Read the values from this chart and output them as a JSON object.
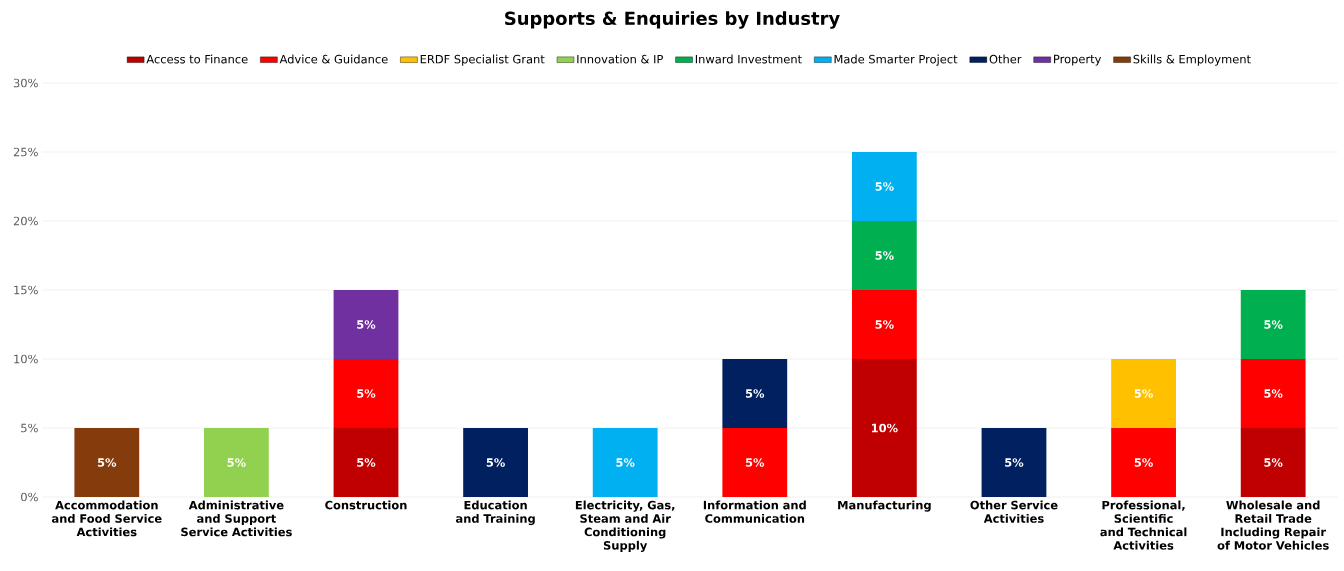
{
  "chart_data": {
    "type": "bar",
    "stacked": true,
    "title": "Supports & Enquiries by Industry",
    "categories": [
      "Accommodation and Food Service Activities",
      "Administrative and Support Service Activities",
      "Construction",
      "Education and Training",
      "Electricity, Gas, Steam and Air Conditioning Supply",
      "Information and Communication",
      "Manufacturing",
      "Other Service Activities",
      "Professional, Scientific and Technical Activities",
      "Wholesale and Retail Trade Including Repair of Motor Vehicles"
    ],
    "series": [
      {
        "name": "Access to Finance",
        "color": "#c00000",
        "values": [
          null,
          null,
          5,
          null,
          null,
          null,
          10,
          null,
          null,
          5
        ],
        "value_labels": [
          null,
          null,
          "5%",
          null,
          null,
          null,
          "10%",
          null,
          null,
          "5%"
        ]
      },
      {
        "name": "Advice & Guidance",
        "color": "#ff0000",
        "values": [
          null,
          null,
          5,
          null,
          null,
          5,
          5,
          null,
          5,
          5
        ],
        "value_labels": [
          null,
          null,
          "5%",
          null,
          null,
          "5%",
          "5%",
          null,
          "5%",
          "5%"
        ]
      },
      {
        "name": "ERDF Specialist Grant",
        "color": "#ffc000",
        "values": [
          null,
          null,
          null,
          null,
          null,
          null,
          null,
          null,
          5,
          null
        ],
        "value_labels": [
          null,
          null,
          null,
          null,
          null,
          null,
          null,
          null,
          "5%",
          null
        ]
      },
      {
        "name": "Innovation & IP",
        "color": "#92d050",
        "values": [
          null,
          5,
          null,
          null,
          null,
          null,
          null,
          null,
          null,
          null
        ],
        "value_labels": [
          null,
          "5%",
          null,
          null,
          null,
          null,
          null,
          null,
          null,
          null
        ]
      },
      {
        "name": "Inward Investment",
        "color": "#00b050",
        "values": [
          null,
          null,
          null,
          null,
          null,
          null,
          5,
          null,
          null,
          5
        ],
        "value_labels": [
          null,
          null,
          null,
          null,
          null,
          null,
          "5%",
          null,
          null,
          "5%"
        ]
      },
      {
        "name": "Made Smarter Project",
        "color": "#00b0f0",
        "values": [
          null,
          null,
          null,
          null,
          5,
          null,
          5,
          null,
          null,
          null
        ],
        "value_labels": [
          null,
          null,
          null,
          null,
          "5%",
          null,
          "5%",
          null,
          null,
          null
        ]
      },
      {
        "name": "Other",
        "color": "#002060",
        "values": [
          null,
          null,
          null,
          5,
          null,
          5,
          null,
          5,
          null,
          null
        ],
        "value_labels": [
          null,
          null,
          null,
          "5%",
          null,
          "5%",
          null,
          "5%",
          null,
          null
        ]
      },
      {
        "name": "Property",
        "color": "#7030a0",
        "values": [
          null,
          null,
          5,
          null,
          null,
          null,
          null,
          null,
          null,
          null
        ],
        "value_labels": [
          null,
          null,
          "5%",
          null,
          null,
          null,
          null,
          null,
          null,
          null
        ]
      },
      {
        "name": "Skills & Employment",
        "color": "#843c0c",
        "values": [
          5,
          null,
          null,
          null,
          null,
          null,
          null,
          null,
          null,
          null
        ],
        "value_labels": [
          "5%",
          null,
          null,
          null,
          null,
          null,
          null,
          null,
          null,
          null
        ]
      }
    ],
    "ylim": [
      0,
      30
    ],
    "yticks": [
      {
        "value": 0,
        "label": "0%"
      },
      {
        "value": 5,
        "label": "5%"
      },
      {
        "value": 10,
        "label": "10%"
      },
      {
        "value": 15,
        "label": "15%"
      },
      {
        "value": 20,
        "label": "20%"
      },
      {
        "value": 25,
        "label": "25%"
      },
      {
        "value": 30,
        "label": "30%"
      }
    ],
    "grid": "y",
    "legend": "top"
  }
}
